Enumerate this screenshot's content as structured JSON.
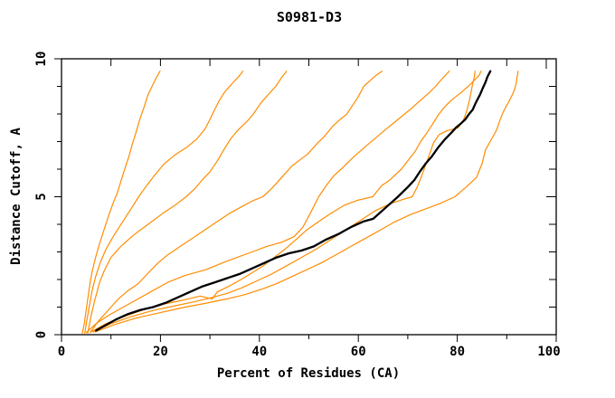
{
  "chart_data": {
    "type": "line",
    "title": "S0981-D3",
    "xlabel": "Percent of Residues (CA)",
    "ylabel": "Distance Cutoff, A",
    "xlim": [
      0,
      100
    ],
    "ylim": [
      0,
      10
    ],
    "grid": false,
    "legend": "none",
    "frame": "full-box",
    "background_color": "#ffffff",
    "frame_color": "#000000",
    "x_ticks_major": [
      0,
      20,
      40,
      60,
      80,
      100
    ],
    "x_ticks_minor": [
      10,
      30,
      50,
      70,
      90
    ],
    "y_ticks_major": [
      0,
      5,
      10
    ],
    "y_ticks_minor": [
      1,
      2,
      3,
      4,
      6,
      7,
      8,
      9
    ],
    "accent_color": "#ff8c00",
    "emphasis_color": "#000000",
    "series": [
      {
        "id": "orange-1",
        "color": "#ff8c00",
        "width": 1.2,
        "points": [
          [
            4.2,
            0.05
          ],
          [
            4.6,
            0.4
          ],
          [
            5.0,
            0.9
          ],
          [
            5.4,
            1.4
          ],
          [
            5.8,
            1.9
          ],
          [
            6.2,
            2.3
          ],
          [
            6.9,
            2.8
          ],
          [
            7.7,
            3.3
          ],
          [
            8.6,
            3.8
          ],
          [
            9.5,
            4.3
          ],
          [
            10.5,
            4.8
          ],
          [
            11.2,
            5.1
          ],
          [
            11.9,
            5.5
          ],
          [
            12.6,
            5.9
          ],
          [
            13.7,
            6.5
          ],
          [
            14.3,
            6.9
          ],
          [
            15.0,
            7.3
          ],
          [
            15.9,
            7.85
          ],
          [
            16.6,
            8.2
          ],
          [
            17.5,
            8.7
          ],
          [
            18.3,
            9.0
          ],
          [
            19.1,
            9.3
          ],
          [
            19.9,
            9.55
          ]
        ]
      },
      {
        "id": "orange-2",
        "color": "#ff8c00",
        "width": 1.2,
        "points": [
          [
            4.7,
            0.05
          ],
          [
            5.1,
            0.5
          ],
          [
            5.6,
            1.0
          ],
          [
            6.2,
            1.6
          ],
          [
            6.9,
            2.1
          ],
          [
            7.8,
            2.6
          ],
          [
            9.0,
            3.1
          ],
          [
            10.6,
            3.6
          ],
          [
            12.4,
            4.1
          ],
          [
            14.2,
            4.6
          ],
          [
            15.6,
            5.0
          ],
          [
            17.2,
            5.4
          ],
          [
            18.9,
            5.8
          ],
          [
            20.8,
            6.2
          ],
          [
            22.8,
            6.5
          ],
          [
            25.4,
            6.8
          ],
          [
            27.4,
            7.1
          ],
          [
            29.0,
            7.45
          ],
          [
            30.0,
            7.8
          ],
          [
            30.8,
            8.1
          ],
          [
            31.8,
            8.45
          ],
          [
            33.0,
            8.8
          ],
          [
            34.5,
            9.1
          ],
          [
            35.8,
            9.35
          ],
          [
            36.7,
            9.55
          ]
        ]
      },
      {
        "id": "orange-3",
        "color": "#ff8c00",
        "width": 1.2,
        "points": [
          [
            5.3,
            0.05
          ],
          [
            6.0,
            0.7
          ],
          [
            6.8,
            1.3
          ],
          [
            7.7,
            1.9
          ],
          [
            8.6,
            2.3
          ],
          [
            10.0,
            2.8
          ],
          [
            12.0,
            3.2
          ],
          [
            14.5,
            3.6
          ],
          [
            17.5,
            4.0
          ],
          [
            20.5,
            4.4
          ],
          [
            23.0,
            4.7
          ],
          [
            25.2,
            5.0
          ],
          [
            27.0,
            5.3
          ],
          [
            28.4,
            5.6
          ],
          [
            30.0,
            5.9
          ],
          [
            31.5,
            6.3
          ],
          [
            32.8,
            6.7
          ],
          [
            34.2,
            7.1
          ],
          [
            35.6,
            7.4
          ],
          [
            37.6,
            7.75
          ],
          [
            38.8,
            8.0
          ],
          [
            40.3,
            8.4
          ],
          [
            41.8,
            8.7
          ],
          [
            43.3,
            9.0
          ],
          [
            44.4,
            9.3
          ],
          [
            45.5,
            9.55
          ]
        ]
      },
      {
        "id": "orange-4",
        "color": "#ff8c00",
        "width": 1.2,
        "points": [
          [
            5.8,
            0.08
          ],
          [
            7.5,
            0.5
          ],
          [
            9.5,
            0.9
          ],
          [
            11.5,
            1.3
          ],
          [
            13.5,
            1.6
          ],
          [
            15.5,
            1.85
          ],
          [
            17.6,
            2.25
          ],
          [
            19.5,
            2.6
          ],
          [
            21.5,
            2.9
          ],
          [
            24.0,
            3.2
          ],
          [
            26.5,
            3.5
          ],
          [
            29.0,
            3.8
          ],
          [
            31.5,
            4.1
          ],
          [
            34.0,
            4.4
          ],
          [
            36.5,
            4.65
          ],
          [
            38.6,
            4.85
          ],
          [
            40.7,
            5.0
          ],
          [
            42.5,
            5.3
          ],
          [
            44.5,
            5.7
          ],
          [
            46.5,
            6.1
          ],
          [
            48.3,
            6.35
          ],
          [
            49.8,
            6.55
          ],
          [
            51.5,
            6.9
          ],
          [
            53.2,
            7.2
          ],
          [
            54.8,
            7.55
          ],
          [
            56.3,
            7.8
          ],
          [
            57.7,
            8.0
          ],
          [
            58.8,
            8.3
          ],
          [
            59.9,
            8.6
          ],
          [
            61.1,
            9.0
          ],
          [
            62.3,
            9.2
          ],
          [
            63.6,
            9.4
          ],
          [
            64.8,
            9.55
          ]
        ]
      },
      {
        "id": "orange-5",
        "color": "#ff8c00",
        "width": 1.2,
        "points": [
          [
            5.0,
            0.08
          ],
          [
            7.0,
            0.4
          ],
          [
            9.5,
            0.7
          ],
          [
            12.5,
            1.0
          ],
          [
            15.5,
            1.3
          ],
          [
            18.5,
            1.6
          ],
          [
            21.5,
            1.9
          ],
          [
            25.0,
            2.15
          ],
          [
            29.1,
            2.35
          ],
          [
            32.5,
            2.6
          ],
          [
            35.5,
            2.8
          ],
          [
            38.5,
            3.0
          ],
          [
            41.5,
            3.2
          ],
          [
            44.5,
            3.35
          ],
          [
            47.0,
            3.55
          ],
          [
            48.8,
            3.9
          ],
          [
            50.0,
            4.3
          ],
          [
            51.0,
            4.65
          ],
          [
            52.0,
            5.0
          ],
          [
            53.5,
            5.4
          ],
          [
            55.0,
            5.75
          ],
          [
            56.8,
            6.05
          ],
          [
            58.8,
            6.4
          ],
          [
            61.0,
            6.75
          ],
          [
            63.3,
            7.1
          ],
          [
            65.6,
            7.45
          ],
          [
            68.0,
            7.8
          ],
          [
            70.4,
            8.15
          ],
          [
            72.6,
            8.5
          ],
          [
            74.5,
            8.8
          ],
          [
            75.6,
            9.0
          ],
          [
            76.8,
            9.25
          ],
          [
            78.4,
            9.55
          ]
        ]
      },
      {
        "id": "orange-6",
        "color": "#ff8c00",
        "width": 1.2,
        "points": [
          [
            6.0,
            0.1
          ],
          [
            9.0,
            0.4
          ],
          [
            12.5,
            0.65
          ],
          [
            16.5,
            0.9
          ],
          [
            20.5,
            1.1
          ],
          [
            24.5,
            1.25
          ],
          [
            28.0,
            1.4
          ],
          [
            30.5,
            1.3
          ],
          [
            31.5,
            1.55
          ],
          [
            33.8,
            1.75
          ],
          [
            36.3,
            2.0
          ],
          [
            38.6,
            2.25
          ],
          [
            40.8,
            2.5
          ],
          [
            43.0,
            2.8
          ],
          [
            45.2,
            3.1
          ],
          [
            47.4,
            3.45
          ],
          [
            49.6,
            3.8
          ],
          [
            52.0,
            4.1
          ],
          [
            54.5,
            4.4
          ],
          [
            57.2,
            4.7
          ],
          [
            60.0,
            4.88
          ],
          [
            62.9,
            5.0
          ],
          [
            64.7,
            5.4
          ],
          [
            66.3,
            5.6
          ],
          [
            68.7,
            6.0
          ],
          [
            70.2,
            6.35
          ],
          [
            71.5,
            6.65
          ],
          [
            72.6,
            7.0
          ],
          [
            73.6,
            7.25
          ],
          [
            74.9,
            7.6
          ],
          [
            76.1,
            7.95
          ],
          [
            77.4,
            8.25
          ],
          [
            78.8,
            8.5
          ],
          [
            80.6,
            8.75
          ],
          [
            82.2,
            9.0
          ],
          [
            83.6,
            9.25
          ],
          [
            84.4,
            9.4
          ],
          [
            84.8,
            9.55
          ]
        ]
      },
      {
        "id": "orange-7",
        "color": "#ff8c00",
        "width": 1.2,
        "points": [
          [
            6.4,
            0.1
          ],
          [
            10.0,
            0.4
          ],
          [
            14.0,
            0.65
          ],
          [
            18.5,
            0.88
          ],
          [
            23.0,
            1.05
          ],
          [
            27.0,
            1.2
          ],
          [
            30.5,
            1.35
          ],
          [
            33.5,
            1.5
          ],
          [
            36.5,
            1.7
          ],
          [
            39.5,
            1.95
          ],
          [
            42.5,
            2.2
          ],
          [
            45.5,
            2.5
          ],
          [
            48.5,
            2.8
          ],
          [
            51.5,
            3.1
          ],
          [
            54.5,
            3.45
          ],
          [
            57.5,
            3.8
          ],
          [
            60.5,
            4.15
          ],
          [
            63.5,
            4.5
          ],
          [
            66.5,
            4.75
          ],
          [
            69.0,
            4.9
          ],
          [
            70.9,
            5.0
          ],
          [
            71.9,
            5.35
          ],
          [
            72.8,
            5.75
          ],
          [
            73.6,
            6.15
          ],
          [
            74.4,
            6.55
          ],
          [
            75.2,
            6.95
          ],
          [
            76.3,
            7.25
          ],
          [
            78.0,
            7.4
          ],
          [
            80.2,
            7.5
          ],
          [
            81.3,
            7.8
          ],
          [
            81.9,
            8.1
          ],
          [
            82.4,
            8.45
          ],
          [
            82.8,
            8.8
          ],
          [
            83.1,
            9.1
          ],
          [
            83.4,
            9.3
          ],
          [
            83.6,
            9.55
          ]
        ]
      },
      {
        "id": "orange-8",
        "color": "#ff8c00",
        "width": 1.2,
        "points": [
          [
            6.8,
            0.1
          ],
          [
            10.5,
            0.35
          ],
          [
            15.0,
            0.6
          ],
          [
            20.0,
            0.8
          ],
          [
            25.0,
            1.0
          ],
          [
            29.5,
            1.15
          ],
          [
            33.5,
            1.3
          ],
          [
            37.0,
            1.45
          ],
          [
            40.5,
            1.65
          ],
          [
            43.5,
            1.85
          ],
          [
            46.5,
            2.1
          ],
          [
            49.5,
            2.35
          ],
          [
            52.5,
            2.6
          ],
          [
            55.5,
            2.9
          ],
          [
            58.5,
            3.2
          ],
          [
            61.5,
            3.5
          ],
          [
            64.5,
            3.8
          ],
          [
            67.5,
            4.1
          ],
          [
            70.5,
            4.35
          ],
          [
            73.5,
            4.55
          ],
          [
            76.5,
            4.75
          ],
          [
            79.5,
            5.0
          ],
          [
            81.8,
            5.35
          ],
          [
            83.9,
            5.7
          ],
          [
            85.0,
            6.2
          ],
          [
            85.7,
            6.7
          ],
          [
            86.8,
            7.05
          ],
          [
            87.9,
            7.4
          ],
          [
            88.6,
            7.75
          ],
          [
            89.1,
            8.0
          ],
          [
            89.8,
            8.25
          ],
          [
            90.3,
            8.4
          ],
          [
            91.0,
            8.65
          ],
          [
            91.5,
            8.85
          ],
          [
            91.9,
            9.1
          ],
          [
            92.1,
            9.35
          ],
          [
            92.3,
            9.55
          ]
        ]
      },
      {
        "id": "black-main",
        "color": "#000000",
        "width": 2.3,
        "points": [
          [
            7.0,
            0.15
          ],
          [
            9.0,
            0.35
          ],
          [
            11.0,
            0.55
          ],
          [
            13.5,
            0.75
          ],
          [
            16.0,
            0.9
          ],
          [
            18.5,
            1.0
          ],
          [
            21.0,
            1.15
          ],
          [
            23.5,
            1.35
          ],
          [
            26.0,
            1.55
          ],
          [
            28.5,
            1.75
          ],
          [
            31.0,
            1.9
          ],
          [
            33.5,
            2.05
          ],
          [
            36.0,
            2.2
          ],
          [
            38.5,
            2.4
          ],
          [
            41.0,
            2.6
          ],
          [
            43.5,
            2.8
          ],
          [
            46.0,
            2.95
          ],
          [
            48.5,
            3.05
          ],
          [
            51.0,
            3.2
          ],
          [
            53.5,
            3.45
          ],
          [
            56.0,
            3.65
          ],
          [
            58.5,
            3.9
          ],
          [
            61.0,
            4.1
          ],
          [
            63.0,
            4.2
          ],
          [
            65.5,
            4.6
          ],
          [
            68.0,
            5.0
          ],
          [
            70.0,
            5.35
          ],
          [
            71.3,
            5.6
          ],
          [
            72.4,
            5.9
          ],
          [
            73.6,
            6.2
          ],
          [
            74.8,
            6.45
          ],
          [
            76.2,
            6.8
          ],
          [
            77.6,
            7.1
          ],
          [
            78.7,
            7.3
          ],
          [
            79.7,
            7.5
          ],
          [
            80.7,
            7.65
          ],
          [
            81.6,
            7.8
          ],
          [
            82.4,
            8.0
          ],
          [
            83.1,
            8.15
          ],
          [
            83.6,
            8.35
          ],
          [
            84.0,
            8.5
          ],
          [
            84.6,
            8.7
          ],
          [
            85.2,
            8.95
          ],
          [
            85.7,
            9.15
          ],
          [
            86.1,
            9.35
          ],
          [
            86.7,
            9.55
          ]
        ]
      }
    ]
  }
}
